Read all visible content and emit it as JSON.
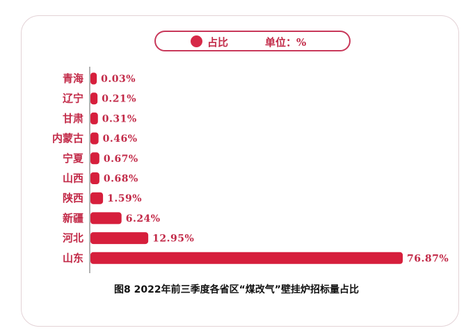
{
  "chart_data": {
    "type": "bar",
    "orientation": "horizontal",
    "title": "图8 2022年前三季度各省区“煤改气”壁挂炉招标量占比",
    "legend": {
      "label": "占比",
      "unit_note": "单位：%",
      "placement": "top"
    },
    "categories": [
      "青海",
      "辽宁",
      "甘肃",
      "内蒙古",
      "宁夏",
      "山西",
      "陕西",
      "新疆",
      "河北",
      "山东"
    ],
    "values": [
      0.03,
      0.21,
      0.31,
      0.46,
      0.67,
      0.68,
      1.59,
      6.24,
      12.95,
      76.87
    ],
    "value_labels": [
      "0.03%",
      "0.21%",
      "0.31%",
      "0.46%",
      "0.67%",
      "0.68%",
      "1.59%",
      "6.24%",
      "12.95%",
      "76.87%"
    ],
    "grid": false,
    "colors": {
      "bar": "#d61f3c",
      "text": "#c22a48",
      "legend_border": "#c8385a",
      "axis": "#999999"
    }
  }
}
